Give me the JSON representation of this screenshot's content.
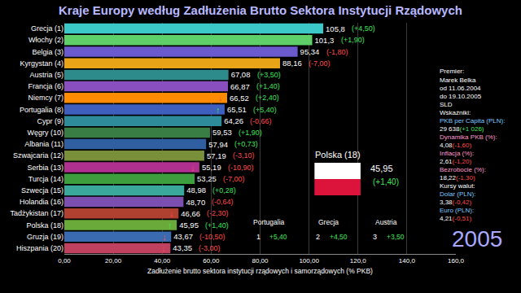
{
  "chart_data": {
    "type": "bar",
    "orientation": "horizontal",
    "title": "Kraje Europy według Zadłużenia Brutto Sektora Instytucji Rządowych",
    "xlabel": "Zadłużenie brutto sektora instytucji rządowych i samorządowych (% PKB)",
    "categories": [
      "Grecja (1)",
      "Włochy (2)",
      "Belgia (3)",
      "Kyrgystan (4)",
      "Austria (5)",
      "Francja (6)",
      "Niemcy (7)",
      "Portugalia (8)",
      "Cypr (9)",
      "Węgry (10)",
      "Albania (11)",
      "Szwajcaria (12)",
      "Serbia (13)",
      "Turcja (14)",
      "Szwecja (15)",
      "Holandia (16)",
      "Tadżykistan (17)",
      "Polska (18)",
      "Gruzja (19)",
      "Hiszpania (20)"
    ],
    "values": [
      105.8,
      101.3,
      95.34,
      88.16,
      67.08,
      66.87,
      66.52,
      65.51,
      64.26,
      59.53,
      57.94,
      57.19,
      55.19,
      53.25,
      48.98,
      48.7,
      46.66,
      45.95,
      43.67,
      43.35
    ],
    "value_labels": [
      "105,8",
      "101,3",
      "95,34",
      "88,16",
      "67,08",
      "66,87",
      "66,52",
      "65,51",
      "64,26",
      "59,53",
      "57,94",
      "57,19",
      "55,19",
      "53,25",
      "48,98",
      "48,70",
      "46,66",
      "45,95",
      "43,67",
      "43,35"
    ],
    "change_labels": [
      "(+4,50)",
      "(+1,90)",
      "(-1,80)",
      "(-7,00)",
      "(+3,50)",
      "(+1,40)",
      "(+2,40)",
      "(+5,40)",
      "(-0,66)",
      "(+1,90)",
      "(+0,73)",
      "(-3,10)",
      "(-10,90)",
      "(-7,00)",
      "(+0,28)",
      "(-0,64)",
      "(-2,30)",
      "(+1,40)",
      "(-10,50)",
      "(-3,00)"
    ],
    "trend": [
      null,
      null,
      null,
      null,
      null,
      null,
      "↓",
      "↑",
      null,
      null,
      null,
      null,
      "↓",
      null,
      null,
      null,
      "↓",
      "↑",
      "↓",
      "↓"
    ],
    "colors": [
      "#3cc8c8",
      "#5fcf6a",
      "#6a5acd",
      "#e8a317",
      "#2e8b8b",
      "#8a4fbf",
      "#ff8c00",
      "#3f5fbf",
      "#2e8b9a",
      "#3a7d44",
      "#2f5fa0",
      "#7a8f3a",
      "#b03090",
      "#3d9e3d",
      "#3aa89a",
      "#7b4fb0",
      "#b04030",
      "#6aaa3a",
      "#3a6ab0",
      "#c04060"
    ],
    "data_labels": true,
    "grid": true,
    "xlim": [
      0,
      160
    ],
    "xticks": [
      {
        "value": 0,
        "label": "0,00"
      },
      {
        "value": 20,
        "label": "20,00"
      },
      {
        "value": 40,
        "label": "40,00"
      },
      {
        "value": 60,
        "label": "60,00"
      },
      {
        "value": 80,
        "label": "80,00"
      },
      {
        "value": 100,
        "label": "100,00"
      },
      {
        "value": 120,
        "label": "120,0"
      },
      {
        "value": 140,
        "label": "140,0"
      },
      {
        "value": 160,
        "label": "160,0"
      }
    ],
    "highlight": {
      "label": "Polska (18)",
      "value_label": "45,95",
      "change": "(+1,40)"
    },
    "top3": [
      {
        "rank": "1",
        "name": "Portugalia",
        "change": "+5,40"
      },
      {
        "rank": "2",
        "name": "Grecja",
        "change": "+4,50"
      },
      {
        "rank": "3",
        "name": "Austria",
        "change": "+3,50"
      }
    ],
    "panel": {
      "premier_heading": "Premier:",
      "premier": "Marek Belka",
      "from": "od 11.06.2004",
      "to": "do 19.10.2005",
      "party": "SLD",
      "indicators_heading": "Wskaźniki:",
      "indicators": [
        {
          "label": "PKB per Capita (PLN):",
          "value": "29 638",
          "change": "(+1 026)"
        },
        {
          "label": "Dynamika PKB (%):",
          "value": "4,08",
          "change": "(-1,60)"
        },
        {
          "label": "Inflacja (%):",
          "value": "2,61",
          "change": "(-1,20)"
        },
        {
          "label": "Bezrobocie (%):",
          "value": "18,22",
          "change": "(-1,30)"
        }
      ],
      "currency_heading": "Kursy walut:",
      "currencies": [
        {
          "label": "Dolar (PLN):",
          "value": "3,38",
          "change": "(-0,42)"
        },
        {
          "label": "Euro (PLN):",
          "value": "4,21",
          "change": "(-0,51)"
        }
      ]
    },
    "year": "2005"
  }
}
